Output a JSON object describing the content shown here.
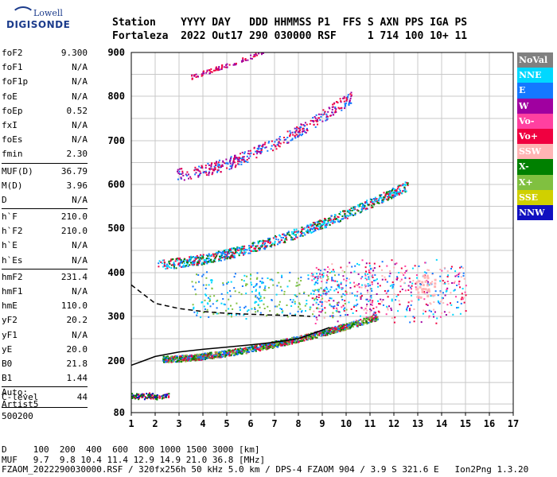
{
  "logo": {
    "top": "Lowell",
    "bottom": "DIGISONDE"
  },
  "header": {
    "line1": "Station    YYYY DAY   DDD HHMMSS P1  FFS S AXN PPS IGA PS",
    "line2": "Fortaleza  2022 Out17 290 030000 RSF     1 714 100 10+ 11"
  },
  "params": [
    {
      "label": "foF2",
      "value": "9.300"
    },
    {
      "label": "foF1",
      "value": "N/A"
    },
    {
      "label": "foF1p",
      "value": "N/A"
    },
    {
      "label": "foE",
      "value": "N/A"
    },
    {
      "label": "foEp",
      "value": "0.52"
    },
    {
      "label": "fxI",
      "value": "N/A"
    },
    {
      "label": "foEs",
      "value": "N/A"
    },
    {
      "label": "fmin",
      "value": "2.30"
    },
    {
      "label": "MUF(D)",
      "value": "36.79"
    },
    {
      "label": "M(D)",
      "value": "3.96"
    },
    {
      "label": "D",
      "value": "N/A"
    },
    {
      "label": "h`F",
      "value": "210.0"
    },
    {
      "label": "h`F2",
      "value": "210.0"
    },
    {
      "label": "h`E",
      "value": "N/A"
    },
    {
      "label": "h`Es",
      "value": "N/A"
    },
    {
      "label": "hmF2",
      "value": "231.4"
    },
    {
      "label": "hmF1",
      "value": "N/A"
    },
    {
      "label": "hmE",
      "value": "110.0"
    },
    {
      "label": "yF2",
      "value": "20.2"
    },
    {
      "label": "yF1",
      "value": "N/A"
    },
    {
      "label": "yE",
      "value": "20.0"
    },
    {
      "label": "B0",
      "value": "21.8"
    },
    {
      "label": "B1",
      "value": "1.44"
    },
    {
      "label": "C-level",
      "value": "44"
    }
  ],
  "auto": {
    "line1": "Auto:",
    "line2": "Artist5",
    "line3": "500200"
  },
  "legend": [
    {
      "label": "NoVal",
      "bg": "#808080",
      "fg": "#ffffff"
    },
    {
      "label": "NNE",
      "bg": "#00d8ff",
      "fg": "#ffffff"
    },
    {
      "label": "E",
      "bg": "#1478ff",
      "fg": "#ffffff"
    },
    {
      "label": "W",
      "bg": "#a000a0",
      "fg": "#ffffff"
    },
    {
      "label": "Vo-",
      "bg": "#ff40a0",
      "fg": "#ffffff"
    },
    {
      "label": "Vo+",
      "bg": "#f00040",
      "fg": "#ffffff"
    },
    {
      "label": "SSW",
      "bg": "#ffb4b4",
      "fg": "#ffffff"
    },
    {
      "label": "X-",
      "bg": "#008000",
      "fg": "#ffffff"
    },
    {
      "label": "X+",
      "bg": "#80c040",
      "fg": "#ffffff"
    },
    {
      "label": "SSE",
      "bg": "#d0d000",
      "fg": "#ffffff"
    },
    {
      "label": "NNW",
      "bg": "#1010c0",
      "fg": "#ffffff"
    }
  ],
  "footer": {
    "line1": "D     100  200  400  600  800 1000 1500 3000 [km]",
    "line2": "MUF   9.7  9.8 10.4 11.4 12.9 14.9 21.0 36.8 [MHz]",
    "line3": "FZAOM_2022290030000.RSF / 320fx256h 50 kHz 5.0 km / DPS-4 FZAOM 904 / 3.9 S 321.6 E   Ion2Png 1.3.20"
  },
  "chart_data": {
    "type": "scatter",
    "xlim": [
      1,
      17
    ],
    "ylim": [
      80,
      900
    ],
    "x_ticks": [
      "1",
      "2",
      "3",
      "4",
      "5",
      "6",
      "7",
      "8",
      "9",
      "10",
      "11",
      "12",
      "13",
      "14",
      "15",
      "16",
      "17"
    ],
    "y_ticks": [
      "80",
      "200",
      "300",
      "400",
      "500",
      "600",
      "700",
      "800",
      "900"
    ],
    "grid": true,
    "legend_position": "right",
    "traces": [
      {
        "name": "Es low echoes",
        "x": [
          1.0,
          2.6
        ],
        "y": [
          115,
          125
        ],
        "colors": [
          "#008000",
          "#f00040",
          "#1010c0"
        ]
      },
      {
        "name": "F trace 1st hop",
        "x": [
          2.3,
          11.3
        ],
        "y": [
          205,
          300
        ],
        "colors": [
          "#f00040",
          "#008000",
          "#1478ff",
          "#80c040"
        ]
      },
      {
        "name": "F trace 2nd hop",
        "x": [
          2.1,
          12.6
        ],
        "y": [
          420,
          600
        ],
        "colors": [
          "#f00040",
          "#1478ff",
          "#00d8ff",
          "#008000"
        ]
      },
      {
        "name": "F trace 3rd hop",
        "x": [
          2.9,
          10.2
        ],
        "y": [
          625,
          800
        ],
        "colors": [
          "#f00040",
          "#a000a0",
          "#1478ff"
        ]
      },
      {
        "name": "F trace 4th hop",
        "x": [
          3.5,
          6.5
        ],
        "y": [
          845,
          900
        ],
        "colors": [
          "#f00040",
          "#a000a0"
        ]
      },
      {
        "name": "spread",
        "x": [
          8.5,
          15
        ],
        "y": [
          300,
          420
        ],
        "colors": [
          "#f00040",
          "#1478ff",
          "#a000a0",
          "#ff40a0",
          "#00d8ff",
          "#ffb4b4"
        ]
      }
    ],
    "profile_curve": {
      "x": [
        1.0,
        1.5,
        2,
        3,
        4,
        5,
        6,
        7,
        8,
        9.3
      ],
      "y": [
        190,
        200,
        210,
        220,
        226,
        231,
        236,
        242,
        250,
        275
      ]
    },
    "dashed_curve": {
      "x": [
        1.0,
        2,
        3,
        4,
        5,
        6,
        7,
        8,
        8.5
      ],
      "y": [
        372,
        330,
        318,
        311,
        307,
        305,
        303,
        302,
        300
      ]
    }
  }
}
